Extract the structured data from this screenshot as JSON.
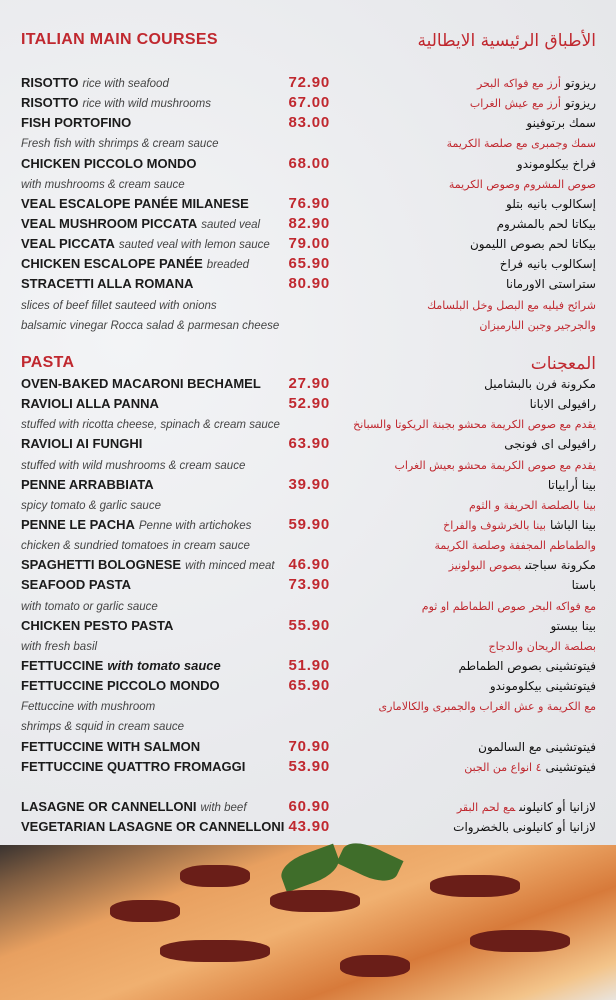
{
  "sections": [
    {
      "title": "ITALIAN MAIN COURSES",
      "title_ar": "الأطباق الرئيسية الايطالية",
      "rows": [
        {
          "name": "RISOTTO",
          "desc": "rice with seafood",
          "price": "72.90",
          "ar": "ريزوتو",
          "ar_desc": "أرز مع فواكه البحر"
        },
        {
          "name": "RISOTTO",
          "desc": "rice with wild mushrooms",
          "price": "67.00",
          "ar": "ريزوتو",
          "ar_desc": "أرز مع عيش الغراب"
        },
        {
          "name": "FISH PORTOFINO",
          "price": "83.00",
          "ar": "سمك برتوفينو"
        },
        {
          "desc_line": "Fresh fish with shrimps & cream sauce",
          "ar_desc": "سمك وجمبرى مع صلصة الكريمة"
        },
        {
          "name": "CHICKEN PICCOLO MONDO",
          "price": "68.00",
          "ar": "فراخ بيكلوموندو"
        },
        {
          "desc_line": "with mushrooms & cream sauce",
          "ar_desc": "صوص المشروم وصوص الكريمة"
        },
        {
          "name": "VEAL ESCALOPE PANÉE MILANESE",
          "price": "76.90",
          "ar": "إسكالوب بانيه بتلو"
        },
        {
          "name": "VEAL MUSHROOM PICCATA",
          "desc": "sauted veal",
          "price": "82.90",
          "ar": "بيكاتا لحم بالمشروم"
        },
        {
          "name": "VEAL PICCATA",
          "desc": "sauted veal with lemon sauce",
          "price": "79.00",
          "ar": "بيكاتا لحم بصوص الليمون"
        },
        {
          "name": "CHICKEN ESCALOPE PANÉE",
          "desc": "breaded",
          "price": "65.90",
          "ar": "إسكالوب بانيه فراخ"
        },
        {
          "name": "STRACETTI ALLA ROMANA",
          "price": "80.90",
          "ar": "ستراستى الاورمانا"
        },
        {
          "desc_line": "slices of beef fillet sauteed with onions",
          "ar_desc": "شرائح فيليه مع البصل وخل البلسامك"
        },
        {
          "desc_line": "balsamic vinegar Rocca salad & parmesan cheese",
          "ar_desc": "والجرجير وجبن البارميزان"
        }
      ]
    },
    {
      "title": "PASTA",
      "title_ar": "المعجنات",
      "rows": [
        {
          "name": "OVEN-BAKED MACARONI BECHAMEL",
          "price": "27.90",
          "ar": "مكرونة فرن بالبشاميل"
        },
        {
          "name": "RAVIOLI ALLA PANNA",
          "price": "52.90",
          "ar": "رافيولى الابانا"
        },
        {
          "desc_line": "stuffed with ricotta cheese, spinach & cream sauce",
          "ar_desc": "يقدم مع صوص الكريمة محشو بجبنة الريكوتا والسبانخ"
        },
        {
          "name": "RAVIOLI AI FUNGHI",
          "price": "63.90",
          "ar": "رافيولى اى فونجى"
        },
        {
          "desc_line": "stuffed with wild mushrooms & cream sauce",
          "ar_desc": "يقدم مع صوص الكريمة محشو بعيش الغراب"
        },
        {
          "name": "PENNE ARRABBIATA",
          "price": "39.90",
          "ar": "بينا أرابياتا"
        },
        {
          "desc_line": "spicy tomato & garlic sauce",
          "ar_desc": "بينا بالصلصة الحريفة و الثوم"
        },
        {
          "name": "PENNE LE PACHA",
          "desc": "Penne with artichokes",
          "price": "59.90",
          "ar": "بينا الباشا",
          "ar_desc": "بينا بالخرشوف والفراخ"
        },
        {
          "desc_line": "chicken & sundried tomatoes in cream sauce",
          "ar_desc": "والطماطم المجففة وصلصة الكريمة"
        },
        {
          "name": "SPAGHETTI BOLOGNESE",
          "desc": "with minced meat",
          "price": "46.90",
          "ar": "مكرونة سباجتى",
          "ar_desc": "بصوص البولونيز"
        },
        {
          "name": "SEAFOOD PASTA",
          "price": "73.90",
          "ar": "باستا"
        },
        {
          "desc_line": "with tomato or garlic sauce",
          "ar_desc": "مع فواكه البحر  صوص الطماطم او ثوم"
        },
        {
          "name": "CHICKEN PESTO PASTA",
          "price": "55.90",
          "ar": "بينا بيستو"
        },
        {
          "desc_line": "with fresh basil",
          "ar_desc": "بصلصة الريحان والدجاج"
        },
        {
          "name": "FETTUCCINE",
          "desc_bold": "with tomato sauce",
          "price": "51.90",
          "ar": "فيتوتشينى بصوص الطماطم"
        },
        {
          "name": "FETTUCCINE PICCOLO MONDO",
          "price": "65.90",
          "ar": "فيتوتشينى بيكلوموندو"
        },
        {
          "desc_line": "Fettuccine with mushroom",
          "ar_desc": "مع الكريمة و عش الغراب والجمبرى والكالامارى"
        },
        {
          "desc_line": " shrimps & squid in cream sauce"
        },
        {
          "name": "FETTUCCINE WITH SALMON",
          "price": "70.90",
          "ar": "فيتوتشينى مع السالمون"
        },
        {
          "name": "FETTUCCINE QUATTRO FROMAGGI",
          "price": "53.90",
          "ar": "فيتوتشينى",
          "ar_desc": "٤ انواع من الجبن"
        },
        {},
        {
          "name": "LASAGNE OR CANNELLONI",
          "desc": "with beef",
          "price": "60.90",
          "ar": "لازانيا أو كانيلونى",
          "ar_desc": "مع لحم البقر"
        },
        {
          "name": "VEGETARIAN LASAGNE OR CANNELLONI",
          "price": "43.90",
          "ar": "لازانيا أو كانيلونى بالخضروات"
        }
      ]
    }
  ],
  "colors": {
    "accent": "#c0282f",
    "text": "#1b1b1b",
    "background": "#eeeff1"
  }
}
